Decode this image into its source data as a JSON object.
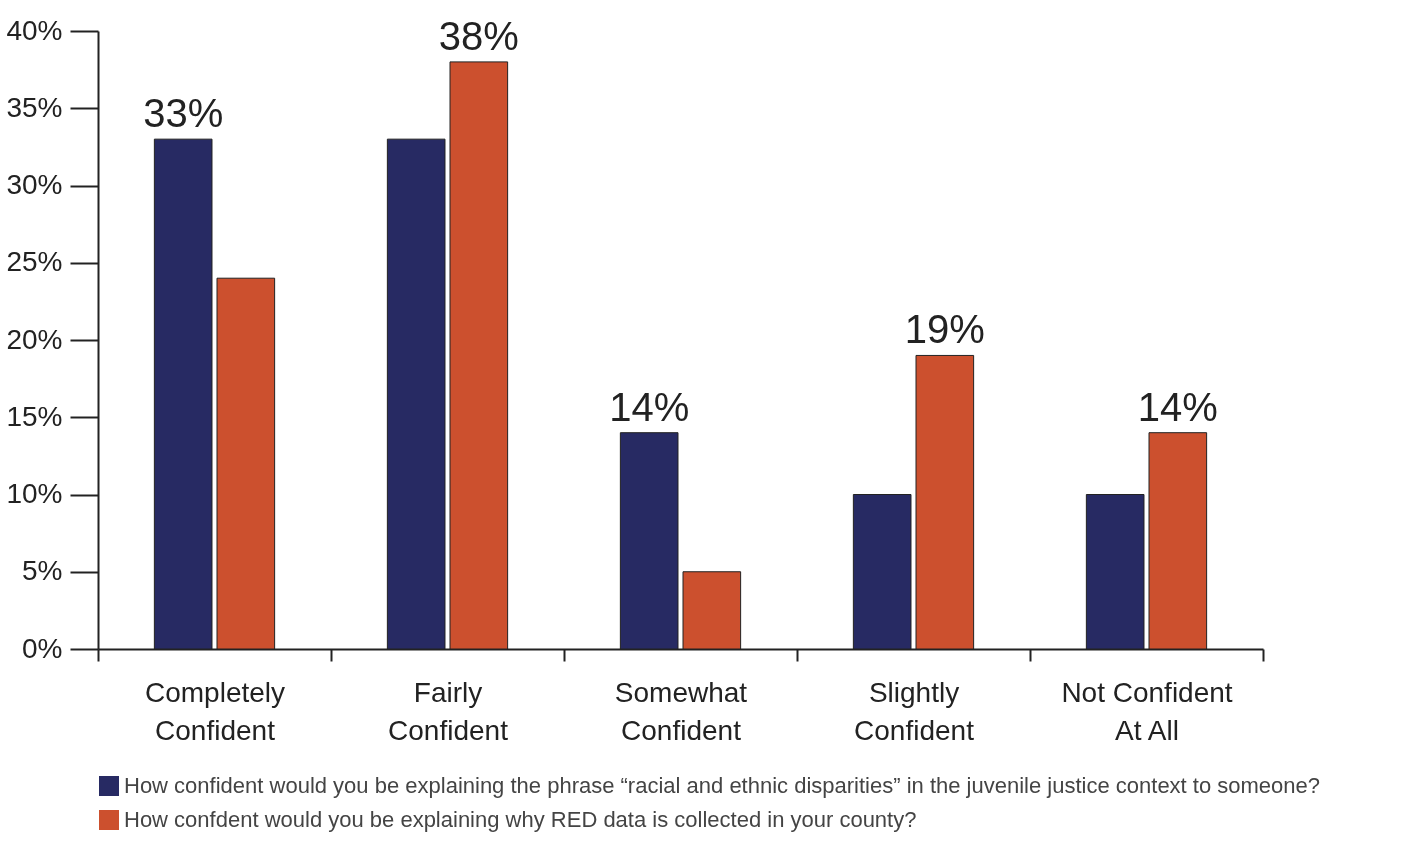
{
  "chart_data": {
    "type": "bar",
    "categories": [
      "Completely Confident",
      "Fairly Confident",
      "Somewhat Confident",
      "Slightly Confident",
      "Not Confident At All"
    ],
    "series": [
      {
        "name": "How confident would you be explaining the phrase “racial and ethnic disparities” in the juvenile justice context  to someone?",
        "color": "#272a63",
        "values": [
          33,
          33,
          14,
          10,
          10
        ],
        "value_labels": [
          "33%",
          null,
          "14%",
          null,
          null
        ]
      },
      {
        "name": "How confdent would you be explaining why RED data is collected in your county?",
        "color": "#cc502e",
        "values": [
          24,
          38,
          5,
          19,
          14
        ],
        "value_labels": [
          null,
          "38%",
          null,
          "19%",
          "14%"
        ]
      }
    ],
    "ylim": [
      0,
      40
    ],
    "yticks": [
      {
        "value": 0,
        "label": "0%"
      },
      {
        "value": 5,
        "label": "5%"
      },
      {
        "value": 10,
        "label": "10%"
      },
      {
        "value": 15,
        "label": "15%"
      },
      {
        "value": 20,
        "label": "20%"
      },
      {
        "value": 25,
        "label": "25%"
      },
      {
        "value": 30,
        "label": "30%"
      },
      {
        "value": 35,
        "label": "35%"
      },
      {
        "value": 40,
        "label": "40%"
      }
    ],
    "grid": false,
    "legend": "bottom"
  }
}
